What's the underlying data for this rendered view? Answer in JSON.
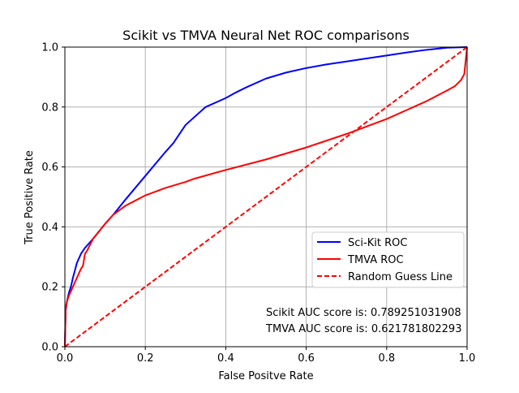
{
  "chart_data": {
    "type": "line",
    "title": "Scikit vs TMVA Neural Net ROC comparisons",
    "xlabel": "False Positve Rate",
    "ylabel": "True Positive Rate",
    "xlim": [
      0.0,
      1.0
    ],
    "ylim": [
      0.0,
      1.0
    ],
    "xticks": [
      "0.0",
      "0.2",
      "0.4",
      "0.6",
      "0.8",
      "1.0"
    ],
    "yticks": [
      "0.0",
      "0.2",
      "0.4",
      "0.6",
      "0.8",
      "1.0"
    ],
    "grid": true,
    "legend_position": "lower-right",
    "series": [
      {
        "name": "Sci-Kit ROC",
        "color": "#0000ff",
        "line_style": "solid",
        "x": [
          0.0,
          0.002,
          0.005,
          0.01,
          0.015,
          0.02,
          0.03,
          0.04,
          0.05,
          0.07,
          0.1,
          0.12,
          0.15,
          0.2,
          0.25,
          0.27,
          0.3,
          0.35,
          0.4,
          0.42,
          0.45,
          0.5,
          0.55,
          0.6,
          0.65,
          0.7,
          0.75,
          0.8,
          0.85,
          0.9,
          0.95,
          1.0
        ],
        "y": [
          0.0,
          0.12,
          0.15,
          0.18,
          0.2,
          0.23,
          0.28,
          0.31,
          0.33,
          0.36,
          0.41,
          0.44,
          0.49,
          0.57,
          0.65,
          0.68,
          0.74,
          0.8,
          0.83,
          0.845,
          0.865,
          0.895,
          0.915,
          0.93,
          0.942,
          0.952,
          0.962,
          0.972,
          0.982,
          0.991,
          0.998,
          1.0
        ]
      },
      {
        "name": "TMVA ROC",
        "color": "#ff0000",
        "line_style": "solid",
        "x": [
          0.0,
          0.002,
          0.005,
          0.01,
          0.02,
          0.03,
          0.04,
          0.045,
          0.05,
          0.055,
          0.07,
          0.1,
          0.12,
          0.15,
          0.2,
          0.25,
          0.3,
          0.32,
          0.4,
          0.5,
          0.6,
          0.7,
          0.8,
          0.85,
          0.9,
          0.95,
          0.97,
          0.985,
          0.993,
          1.0
        ],
        "y": [
          0.0,
          0.13,
          0.15,
          0.17,
          0.2,
          0.23,
          0.26,
          0.27,
          0.31,
          0.32,
          0.36,
          0.41,
          0.44,
          0.47,
          0.505,
          0.53,
          0.55,
          0.56,
          0.59,
          0.625,
          0.665,
          0.71,
          0.76,
          0.79,
          0.82,
          0.855,
          0.87,
          0.89,
          0.91,
          1.0
        ]
      },
      {
        "name": "Random Guess Line",
        "color": "#ff0000",
        "line_style": "dashed",
        "x": [
          0.0,
          1.0
        ],
        "y": [
          0.0,
          1.0
        ]
      }
    ],
    "annotations": [
      "Scikit AUC score is: 0.789251031908",
      "TMVA AUC score is: 0.621781802293"
    ]
  }
}
